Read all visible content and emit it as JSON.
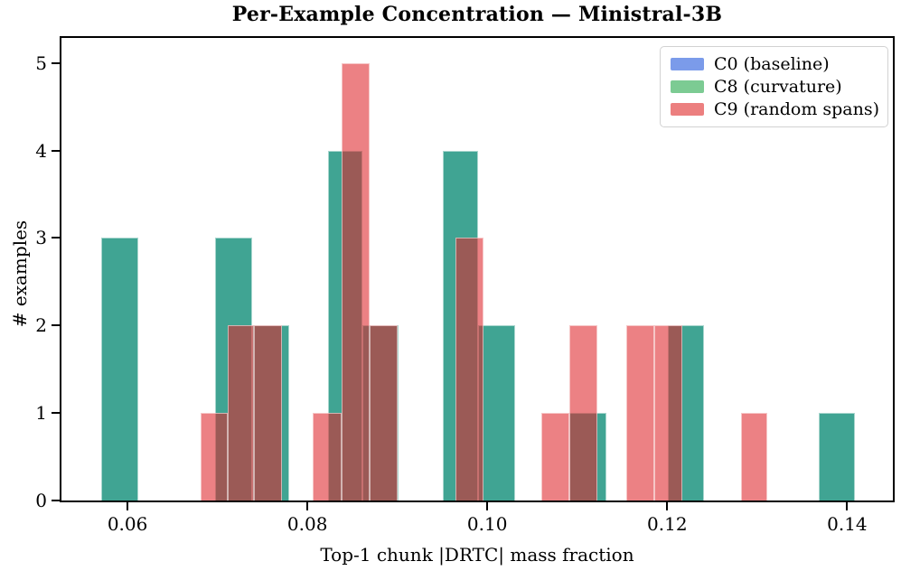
{
  "chart_data": {
    "type": "bar",
    "subtype": "overlaid-histogram",
    "title": "Per-Example Concentration — Ministral-3B",
    "xlabel": "Top-1 chunk |DRTC| mass fraction",
    "ylabel": "# examples",
    "xlim": [
      0.05266,
      0.14508
    ],
    "ylim": [
      0,
      5.286
    ],
    "grid": false,
    "legend_position": "upper right",
    "x_ticks": [
      {
        "v": 0.06,
        "label": "0.06"
      },
      {
        "v": 0.08,
        "label": "0.08"
      },
      {
        "v": 0.1,
        "label": "0.10"
      },
      {
        "v": 0.12,
        "label": "0.12"
      },
      {
        "v": 0.14,
        "label": "0.14"
      }
    ],
    "y_ticks": [
      {
        "v": 0,
        "label": "0"
      },
      {
        "v": 1,
        "label": "1"
      },
      {
        "v": 2,
        "label": "2"
      },
      {
        "v": 3,
        "label": "3"
      },
      {
        "v": 4,
        "label": "4"
      },
      {
        "v": 5,
        "label": "5"
      }
    ],
    "series": [
      {
        "name": "C0 (baseline)",
        "legend_color": "#7b9bea",
        "fill": "#7b9bea",
        "seamed": false,
        "note": "fully hidden beneath C8 (identical distribution)",
        "bins": [
          [
            0.0571,
            0.0612,
            3
          ],
          [
            0.0697,
            0.0739,
            3
          ],
          [
            0.0739,
            0.078,
            2
          ],
          [
            0.0823,
            0.0861,
            4
          ],
          [
            0.0861,
            0.0901,
            2
          ],
          [
            0.095,
            0.099,
            4
          ],
          [
            0.099,
            0.1031,
            2
          ],
          [
            0.1091,
            0.1132,
            1
          ],
          [
            0.1201,
            0.1241,
            2
          ],
          [
            0.1368,
            0.1409,
            1
          ]
        ]
      },
      {
        "name": "C8 (curvature)",
        "legend_color": "#7ccb93",
        "fill": "#40a493",
        "seamed": true,
        "bins": [
          [
            0.0571,
            0.0612,
            3
          ],
          [
            0.0697,
            0.0739,
            3
          ],
          [
            0.0739,
            0.078,
            2
          ],
          [
            0.0823,
            0.0861,
            4
          ],
          [
            0.0861,
            0.0901,
            2
          ],
          [
            0.095,
            0.099,
            4
          ],
          [
            0.099,
            0.1031,
            2
          ],
          [
            0.1091,
            0.1132,
            1
          ],
          [
            0.1201,
            0.1241,
            2
          ],
          [
            0.1368,
            0.1409,
            1
          ]
        ]
      },
      {
        "name": "C9 (random spans)",
        "legend_color": "#ec7f7f",
        "fill": "rgba(222,36,42,0.576)",
        "seamed": true,
        "bins": [
          [
            0.0681,
            0.0711,
            1
          ],
          [
            0.0711,
            0.0741,
            2
          ],
          [
            0.0741,
            0.0772,
            2
          ],
          [
            0.0806,
            0.0838,
            1
          ],
          [
            0.0838,
            0.0869,
            5
          ],
          [
            0.0869,
            0.09,
            2
          ],
          [
            0.0965,
            0.0996,
            3
          ],
          [
            0.106,
            0.1091,
            1
          ],
          [
            0.1091,
            0.1122,
            2
          ],
          [
            0.1154,
            0.1186,
            2
          ],
          [
            0.1186,
            0.1217,
            2
          ],
          [
            0.1282,
            0.1311,
            1
          ]
        ]
      }
    ],
    "colors": {
      "overlap_teal": "#40a493",
      "overlap_dark_red": "#9b5953",
      "red_alone": "#ec8184",
      "spine": "#000000"
    }
  }
}
